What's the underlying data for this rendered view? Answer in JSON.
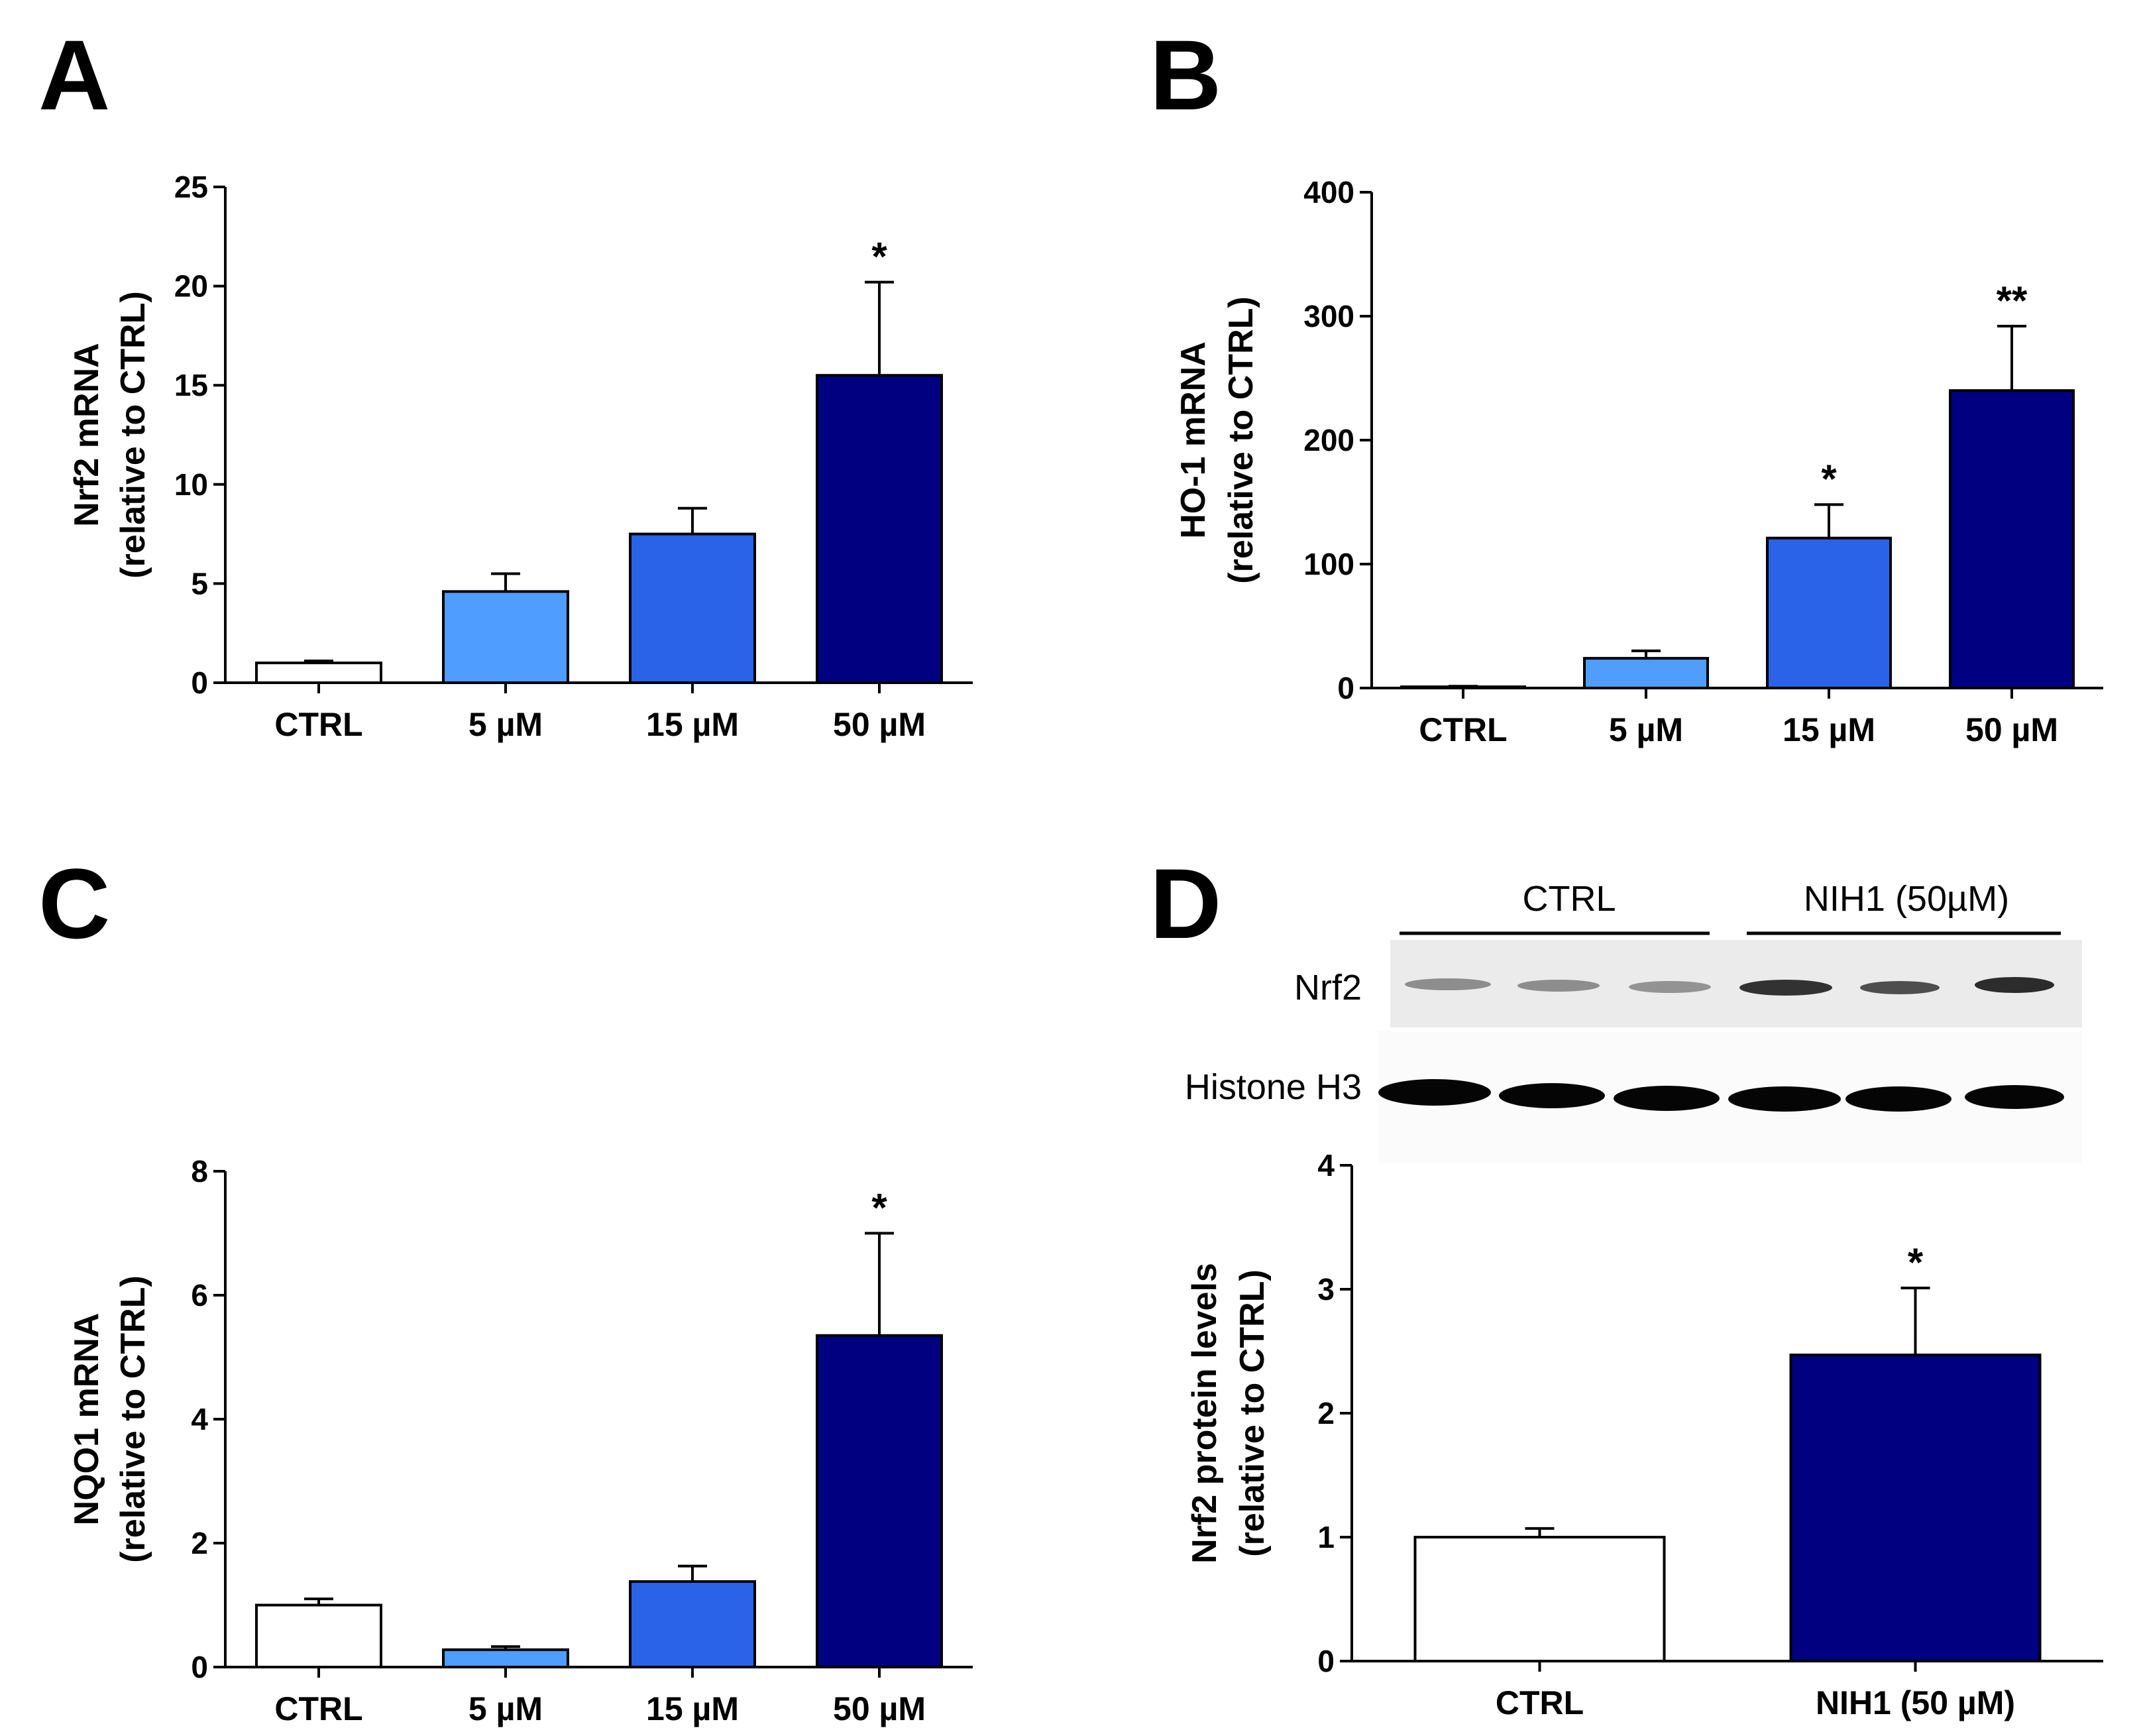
{
  "colors": {
    "white": "#ffffff",
    "light_blue": "#4f9dff",
    "medium_blue": "#2a62e8",
    "dark_navy": "#000080"
  },
  "chart_data": [
    {
      "panel": "A",
      "type": "bar",
      "categories": [
        "CTRL",
        "5 µM",
        "15 µM",
        "50 µM"
      ],
      "values": [
        1.0,
        4.6,
        7.5,
        15.5
      ],
      "errors": [
        0.1,
        0.9,
        1.3,
        4.7
      ],
      "significance": [
        "",
        "",
        "",
        "*"
      ],
      "colors": [
        "#ffffff",
        "#4f9dff",
        "#2a62e8",
        "#000080"
      ],
      "ylabel_line1": "Nrf2 mRNA",
      "ylabel_line2": "(relative to CTRL)",
      "ylim": [
        0,
        25
      ],
      "yticks": [
        0,
        5,
        10,
        15,
        20,
        25
      ]
    },
    {
      "panel": "B",
      "type": "bar",
      "categories": [
        "CTRL",
        "5 µM",
        "15 µM",
        "50 µM"
      ],
      "values": [
        1,
        24,
        121,
        240
      ],
      "errors": [
        0.5,
        6,
        27,
        52
      ],
      "significance": [
        "",
        "",
        "*",
        "**"
      ],
      "colors": [
        "#ffffff",
        "#4f9dff",
        "#2a62e8",
        "#000080"
      ],
      "ylabel_line1": "HO-1  mRNA",
      "ylabel_line2": "(relative to CTRL)",
      "ylim": [
        0,
        400
      ],
      "yticks": [
        0,
        100,
        200,
        300,
        400
      ]
    },
    {
      "panel": "C",
      "type": "bar",
      "categories": [
        "CTRL",
        "5 µM",
        "15 µM",
        "50 µM"
      ],
      "values": [
        1.0,
        0.28,
        1.38,
        5.35
      ],
      "errors": [
        0.1,
        0.05,
        0.25,
        1.65
      ],
      "significance": [
        "",
        "",
        "",
        "*"
      ],
      "colors": [
        "#ffffff",
        "#4f9dff",
        "#2a62e8",
        "#000080"
      ],
      "ylabel_line1": "NQO1  mRNA",
      "ylabel_line2": "(relative to CTRL)",
      "ylim": [
        0,
        8
      ],
      "yticks": [
        0,
        2,
        4,
        6,
        8
      ]
    },
    {
      "panel": "D",
      "type": "bar",
      "categories": [
        "CTRL",
        "NIH1 (50 µM)"
      ],
      "values": [
        1.0,
        2.47
      ],
      "errors": [
        0.07,
        0.54
      ],
      "significance": [
        "",
        "*"
      ],
      "colors": [
        "#ffffff",
        "#000080"
      ],
      "ylabel_line1": "Nrf2 protein levels",
      "ylabel_line2": "(relative to CTRL)",
      "ylim": [
        0,
        4
      ],
      "yticks": [
        0,
        1,
        2,
        3,
        4
      ]
    }
  ],
  "western_blot": {
    "group_labels": [
      "CTRL",
      "NIH1 (50µM)"
    ],
    "row_labels": [
      "Nrf2",
      "Histone H3"
    ],
    "lanes_per_group": 3
  }
}
